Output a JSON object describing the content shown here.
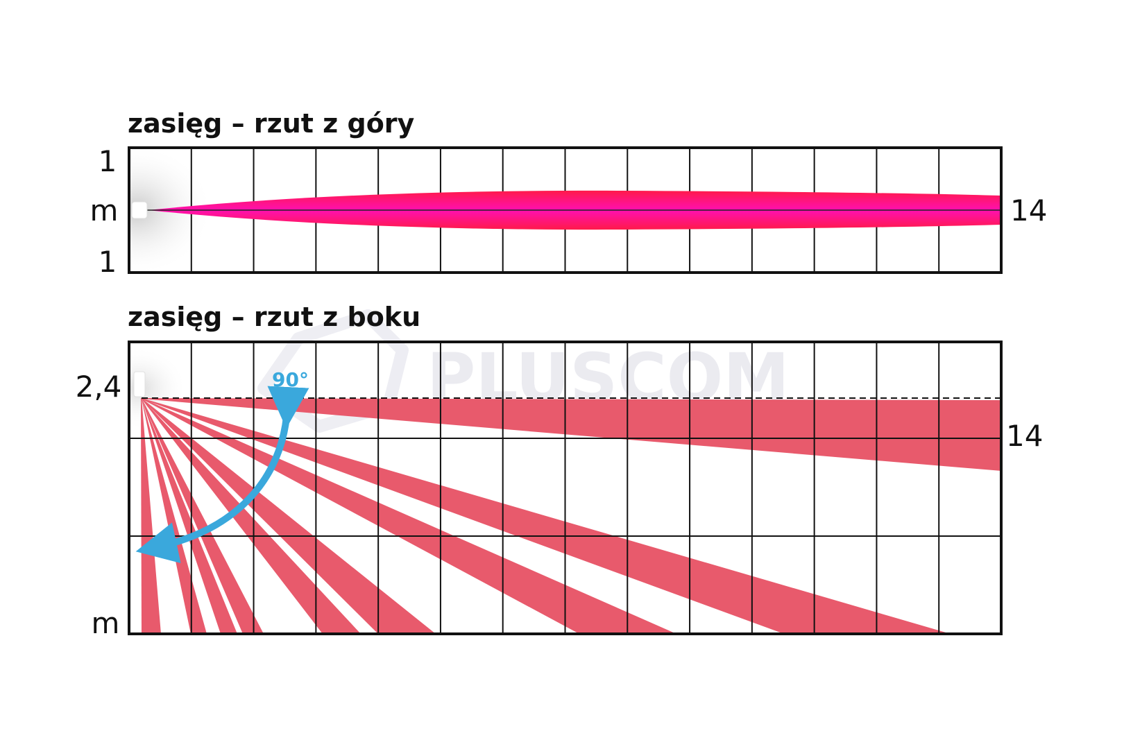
{
  "top_view": {
    "title": "zasięg – rzut z góry",
    "y_top_label": "1",
    "y_unit_label": "m",
    "y_bottom_label": "1",
    "range_label": "14"
  },
  "side_view": {
    "title": "zasięg – rzut z boku",
    "height_label": "2,4",
    "range_label": "14",
    "y_unit_label": "m",
    "angle_label": "90°"
  },
  "watermark": "PLUSCOM",
  "colors": {
    "top_beam": "#ff0a5a",
    "side_beam": "#e85a6c",
    "arrow": "#3aa8dc",
    "grid": "#111111"
  }
}
